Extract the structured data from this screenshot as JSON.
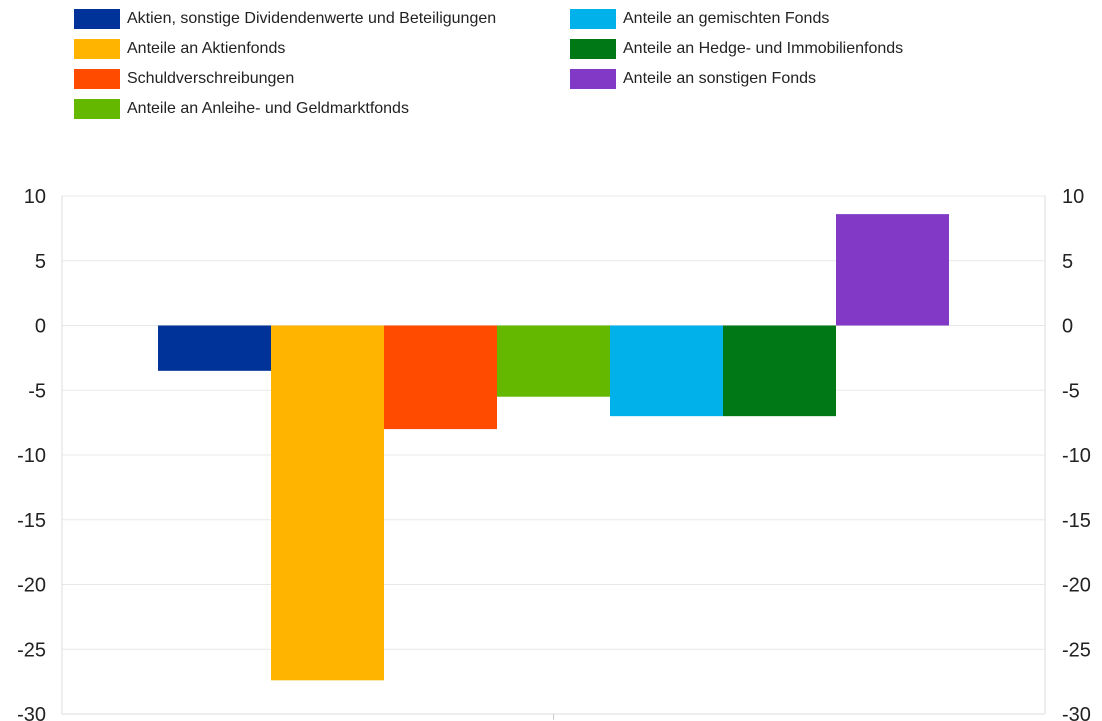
{
  "chart_data": {
    "type": "bar",
    "categories": [
      ""
    ],
    "series": [
      {
        "name": "Aktien, sonstige Dividendenwerte und Beteiligungen",
        "color": "#003399",
        "values": [
          -3.5
        ]
      },
      {
        "name": "Anteile an Aktienfonds",
        "color": "#FFB400",
        "values": [
          -27.4
        ]
      },
      {
        "name": "Schuldverschreibungen",
        "color": "#FF4B00",
        "values": [
          -8.0
        ]
      },
      {
        "name": "Anteile an Anleihe- und Geldmarktfonds",
        "color": "#65B800",
        "values": [
          -5.5
        ]
      },
      {
        "name": "Anteile an gemischten Fonds",
        "color": "#00B1EA",
        "values": [
          -7.0
        ]
      },
      {
        "name": "Anteile an Hedge- und Immobilienfonds",
        "color": "#007816",
        "values": [
          -7.0
        ]
      },
      {
        "name": "Anteile an sonstigen Fonds",
        "color": "#8139C6",
        "values": [
          8.6
        ]
      }
    ],
    "ylim": [
      -30,
      10
    ],
    "yticks": [
      "10",
      "5",
      "0",
      "-5",
      "-10",
      "-15",
      "-20",
      "-25",
      "-30"
    ],
    "legend_position": "top",
    "grid": true,
    "secondary_y_axis": true
  }
}
